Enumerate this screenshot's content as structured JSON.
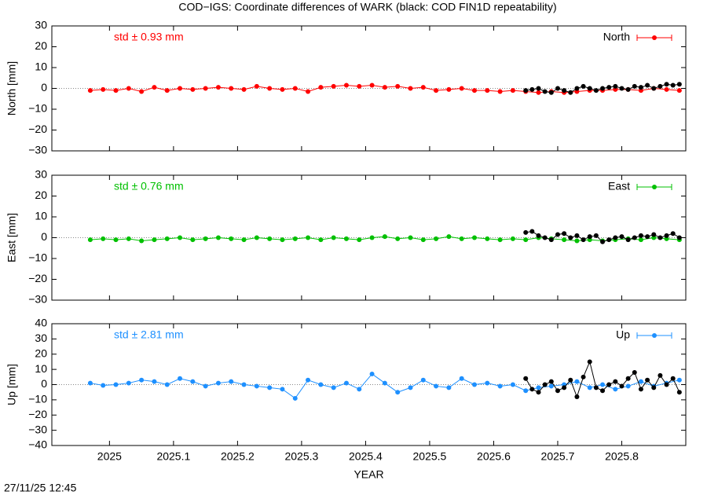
{
  "title": "COD−IGS: Coordinate differences of WARK (black: COD FIN1D repeatability)",
  "timestamp": "27/11/25 12:45",
  "chart_data": [
    {
      "type": "line",
      "ylabel": "North [mm]",
      "annotation": "std ± 0.93 mm",
      "xlim": [
        2024.91,
        2025.9
      ],
      "ylim": [
        -30,
        30
      ],
      "xticks": [
        2025,
        2025.1,
        2025.2,
        2025.3,
        2025.4,
        2025.5,
        2025.6,
        2025.7,
        2025.8
      ],
      "yticks": [
        {
          "value": -30,
          "label": "−30"
        },
        {
          "value": -20,
          "label": "−20"
        },
        {
          "value": -10,
          "label": "−10"
        },
        0,
        10,
        20,
        30
      ],
      "series": [
        {
          "name": "North",
          "color": "#ff0000",
          "x": [
            2024.97,
            2024.99,
            2025.01,
            2025.03,
            2025.05,
            2025.07,
            2025.09,
            2025.11,
            2025.13,
            2025.15,
            2025.17,
            2025.19,
            2025.21,
            2025.23,
            2025.25,
            2025.27,
            2025.29,
            2025.31,
            2025.33,
            2025.35,
            2025.37,
            2025.39,
            2025.41,
            2025.43,
            2025.45,
            2025.47,
            2025.49,
            2025.51,
            2025.53,
            2025.55,
            2025.57,
            2025.59,
            2025.61,
            2025.63,
            2025.65,
            2025.67,
            2025.69,
            2025.71,
            2025.73,
            2025.75,
            2025.77,
            2025.79,
            2025.81,
            2025.83,
            2025.85,
            2025.87,
            2025.89
          ],
          "values": [
            -1,
            -0.5,
            -1,
            0,
            -1.5,
            0.5,
            -1,
            0,
            -0.5,
            0,
            0.5,
            0,
            -0.5,
            1,
            0,
            -0.5,
            0,
            -1.5,
            0.5,
            1,
            1.5,
            1,
            1.5,
            0.5,
            1,
            0,
            0.5,
            -1,
            -0.5,
            0,
            -1,
            -1,
            -1.5,
            -1,
            -1.5,
            -2,
            -1.5,
            -2,
            -1.5,
            -1,
            -1,
            -0.5,
            -0.5,
            -1,
            0,
            -0.5,
            -1
          ]
        },
        {
          "color": "#000000",
          "x": [
            2025.65,
            2025.66,
            2025.67,
            2025.68,
            2025.69,
            2025.7,
            2025.71,
            2025.72,
            2025.73,
            2025.74,
            2025.75,
            2025.76,
            2025.77,
            2025.78,
            2025.79,
            2025.8,
            2025.81,
            2025.82,
            2025.83,
            2025.84,
            2025.85,
            2025.86,
            2025.87,
            2025.88,
            2025.89
          ],
          "values": [
            -1,
            -0.5,
            0,
            -1.5,
            -2,
            0,
            -1,
            -2,
            0,
            1,
            0,
            -1,
            0,
            0.5,
            1,
            0,
            -0.5,
            1,
            0.5,
            1.5,
            0,
            1,
            2,
            1.5,
            2
          ]
        }
      ]
    },
    {
      "type": "line",
      "ylabel": "East [mm]",
      "annotation": "std ± 0.76 mm",
      "xlim": [
        2024.91,
        2025.9
      ],
      "ylim": [
        -30,
        30
      ],
      "xticks": [
        2025,
        2025.1,
        2025.2,
        2025.3,
        2025.4,
        2025.5,
        2025.6,
        2025.7,
        2025.8
      ],
      "yticks": [
        {
          "value": -30,
          "label": "−30"
        },
        {
          "value": -20,
          "label": "−20"
        },
        {
          "value": -10,
          "label": "−10"
        },
        0,
        10,
        20,
        30
      ],
      "series": [
        {
          "name": "East",
          "color": "#00c000",
          "x": [
            2024.97,
            2024.99,
            2025.01,
            2025.03,
            2025.05,
            2025.07,
            2025.09,
            2025.11,
            2025.13,
            2025.15,
            2025.17,
            2025.19,
            2025.21,
            2025.23,
            2025.25,
            2025.27,
            2025.29,
            2025.31,
            2025.33,
            2025.35,
            2025.37,
            2025.39,
            2025.41,
            2025.43,
            2025.45,
            2025.47,
            2025.49,
            2025.51,
            2025.53,
            2025.55,
            2025.57,
            2025.59,
            2025.61,
            2025.63,
            2025.65,
            2025.67,
            2025.69,
            2025.71,
            2025.73,
            2025.75,
            2025.77,
            2025.79,
            2025.81,
            2025.83,
            2025.85,
            2025.87,
            2025.89
          ],
          "values": [
            -1,
            -0.5,
            -1,
            -0.5,
            -1.5,
            -1,
            -0.5,
            0,
            -1,
            -0.5,
            0,
            -0.5,
            -1,
            0,
            -0.5,
            -1,
            -0.5,
            0,
            -1,
            0,
            -0.5,
            -1,
            0,
            0.5,
            -0.5,
            0,
            -1,
            -0.5,
            0.5,
            -0.5,
            0,
            -0.5,
            -1,
            -0.5,
            -1,
            0,
            -0.5,
            -1,
            -1.5,
            -1,
            -1.5,
            -1,
            -0.5,
            -1,
            0,
            -0.5,
            -1
          ]
        },
        {
          "color": "#000000",
          "x": [
            2025.65,
            2025.66,
            2025.67,
            2025.68,
            2025.69,
            2025.7,
            2025.71,
            2025.72,
            2025.73,
            2025.74,
            2025.75,
            2025.76,
            2025.77,
            2025.78,
            2025.79,
            2025.8,
            2025.81,
            2025.82,
            2025.83,
            2025.84,
            2025.85,
            2025.86,
            2025.87,
            2025.88,
            2025.89
          ],
          "values": [
            2.5,
            3,
            1,
            0,
            -1,
            1.5,
            2,
            0,
            1,
            -1,
            0.5,
            1,
            -2,
            -1,
            0,
            0.5,
            -1,
            0,
            1,
            0.5,
            1.5,
            0,
            1,
            2,
            0
          ]
        }
      ]
    },
    {
      "type": "line",
      "ylabel": "Up [mm]",
      "annotation": "std ± 2.81 mm",
      "xlabel": "YEAR",
      "xlim": [
        2024.91,
        2025.9
      ],
      "ylim": [
        -40,
        40
      ],
      "xticks": [
        2025,
        2025.1,
        2025.2,
        2025.3,
        2025.4,
        2025.5,
        2025.6,
        2025.7,
        2025.8
      ],
      "yticks": [
        {
          "value": -40,
          "label": "−40"
        },
        {
          "value": -30,
          "label": "−30"
        },
        {
          "value": -20,
          "label": "−20"
        },
        {
          "value": -10,
          "label": "−10"
        },
        0,
        10,
        20,
        30,
        40
      ],
      "series": [
        {
          "name": "Up",
          "color": "#1e90ff",
          "x": [
            2024.97,
            2024.99,
            2025.01,
            2025.03,
            2025.05,
            2025.07,
            2025.09,
            2025.11,
            2025.13,
            2025.15,
            2025.17,
            2025.19,
            2025.21,
            2025.23,
            2025.25,
            2025.27,
            2025.29,
            2025.31,
            2025.33,
            2025.35,
            2025.37,
            2025.39,
            2025.41,
            2025.43,
            2025.45,
            2025.47,
            2025.49,
            2025.51,
            2025.53,
            2025.55,
            2025.57,
            2025.59,
            2025.61,
            2025.63,
            2025.65,
            2025.67,
            2025.69,
            2025.71,
            2025.73,
            2025.75,
            2025.77,
            2025.79,
            2025.81,
            2025.83,
            2025.85,
            2025.87,
            2025.89
          ],
          "values": [
            1,
            -0.5,
            0,
            1,
            3,
            2,
            0,
            4,
            2,
            -1,
            1,
            2,
            0,
            -1,
            -2,
            -3,
            -9,
            3,
            0,
            -2,
            1,
            -3,
            7,
            1,
            -5,
            -2,
            3,
            -1,
            -2,
            4,
            0,
            1,
            -1,
            0,
            -4,
            -2,
            -1,
            0,
            2,
            -2,
            0,
            -3,
            -1,
            2,
            -1,
            1,
            3
          ]
        },
        {
          "color": "#000000",
          "x": [
            2025.65,
            2025.66,
            2025.67,
            2025.68,
            2025.69,
            2025.7,
            2025.71,
            2025.72,
            2025.73,
            2025.74,
            2025.75,
            2025.76,
            2025.77,
            2025.78,
            2025.79,
            2025.8,
            2025.81,
            2025.82,
            2025.83,
            2025.84,
            2025.85,
            2025.86,
            2025.87,
            2025.88,
            2025.89
          ],
          "values": [
            4,
            -3,
            -5,
            0,
            2,
            -4,
            -2,
            3,
            -8,
            5,
            15,
            -2,
            -4,
            0,
            2,
            -1,
            4,
            8,
            -3,
            3,
            -2,
            6,
            0,
            4,
            -5
          ]
        }
      ]
    }
  ]
}
